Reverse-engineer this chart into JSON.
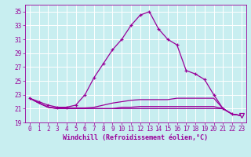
{
  "title": "Windchill (Refroidissement éolien,°C)",
  "bg_color": "#c8eef0",
  "grid_color": "#ffffff",
  "line_color": "#990099",
  "xlim": [
    -0.5,
    23.5
  ],
  "ylim": [
    19,
    36
  ],
  "xticks": [
    0,
    1,
    2,
    3,
    4,
    5,
    6,
    7,
    8,
    9,
    10,
    11,
    12,
    13,
    14,
    15,
    16,
    17,
    18,
    19,
    20,
    21,
    22,
    23
  ],
  "yticks": [
    19,
    21,
    23,
    25,
    27,
    29,
    31,
    33,
    35
  ],
  "hours": [
    0,
    1,
    2,
    3,
    4,
    5,
    6,
    7,
    8,
    9,
    10,
    11,
    12,
    13,
    14,
    15,
    16,
    17,
    18,
    19,
    20,
    21,
    22,
    23
  ],
  "temp_main": [
    22.5,
    22.0,
    21.5,
    21.2,
    21.2,
    21.5,
    23.0,
    25.5,
    27.5,
    29.5,
    31.0,
    33.0,
    34.5,
    35.0,
    32.5,
    31.0,
    30.2,
    26.5,
    26.0,
    25.2,
    23.0,
    21.0,
    20.2,
    20.0
  ],
  "temp_line2": [
    22.5,
    21.8,
    21.2,
    21.1,
    21.1,
    21.1,
    21.1,
    21.2,
    21.5,
    21.8,
    22.0,
    22.2,
    22.3,
    22.3,
    22.3,
    22.3,
    22.5,
    22.5,
    22.5,
    22.5,
    22.5,
    21.0,
    20.2,
    20.0
  ],
  "temp_line3": [
    22.5,
    21.8,
    21.2,
    21.0,
    21.0,
    21.0,
    21.0,
    21.0,
    21.0,
    21.0,
    21.0,
    21.0,
    21.0,
    21.0,
    21.0,
    21.0,
    21.0,
    21.0,
    21.0,
    21.0,
    21.0,
    21.0,
    20.2,
    20.0
  ],
  "temp_line4": [
    22.5,
    21.8,
    21.2,
    21.0,
    21.0,
    21.0,
    21.0,
    21.0,
    21.0,
    21.0,
    21.2,
    21.2,
    21.3,
    21.3,
    21.3,
    21.3,
    21.3,
    21.3,
    21.3,
    21.3,
    21.3,
    21.0,
    20.2,
    20.0
  ],
  "triangle_x": 23,
  "triangle_y": 20.0
}
